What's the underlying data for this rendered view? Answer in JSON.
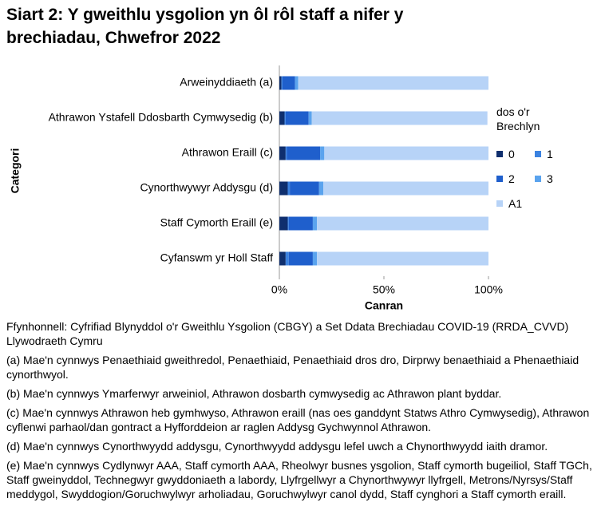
{
  "chart_data": {
    "type": "stacked-bar-horizontal",
    "title": "Siart 2: Y gweithlu ysgolion yn ôl rôl staff a nifer y brechiadau, Chwefror 2022",
    "categories": [
      "Arweinyddiaeth (a)",
      "Athrawon Ystafell Ddosbarth Cymwysedig (b)",
      "Athrawon Eraill (c)",
      "Cynorthwywyr Addysgu (d)",
      "Staff Cymorth Eraill (e)",
      "Cyfanswm yr Holl Staff"
    ],
    "series": [
      {
        "name": "0",
        "color": "#0f2f6e",
        "values": [
          1,
          2.5,
          3,
          4,
          4,
          3
        ]
      },
      {
        "name": "1",
        "color": "#3b82e0",
        "values": [
          0.5,
          0.5,
          0.5,
          1,
          0.5,
          1.5
        ]
      },
      {
        "name": "2",
        "color": "#1f5fcc",
        "values": [
          6,
          11,
          16,
          14,
          11.5,
          11.5
        ]
      },
      {
        "name": "3",
        "color": "#5aa3ee",
        "values": [
          1.5,
          1.5,
          2,
          2,
          2,
          2
        ]
      },
      {
        "name": "A1",
        "color": "#b7d3f7",
        "values": [
          91,
          84,
          78.5,
          79,
          82,
          82
        ]
      }
    ],
    "xlim": [
      0,
      100
    ],
    "xticks": [
      {
        "value": 0,
        "label": "0%"
      },
      {
        "value": 50,
        "label": "50%"
      },
      {
        "value": 100,
        "label": "100%"
      }
    ],
    "x_label": "Canran",
    "y_label": "Categori",
    "legend_title": "dos o'r Brechlyn"
  },
  "footnotes": {
    "source": "Ffynhonnell: Cyfrifiad Blynyddol o'r Gweithlu Ysgolion (CBGY) a Set Ddata Brechiadau COVID-19 (RRDA_CVVD) Llywodraeth Cymru",
    "items": [
      "(a)  Mae'n cynnwys Penaethiaid gweithredol, Penaethiaid, Penaethiaid dros dro, Dirprwy benaethiaid a Phenaethiaid cynorthwyol.",
      "(b) Mae'n cynnwys Ymarferwyr arweiniol, Athrawon dosbarth cymwysedig ac Athrawon plant byddar.",
      "(c) Mae'n cynnwys Athrawon heb gymhwyso, Athrawon eraill (nas oes ganddynt Statws Athro Cymwysedig), Athrawon cyflenwi parhaol/dan gontract a Hyfforddeion ar raglen Addysg Gychwynnol Athrawon.",
      "(d) Mae'n cynnwys Cynorthwyydd addysgu, Cynorthwyydd addysgu lefel uwch a Chynorthwyydd iaith dramor.",
      "(e) Mae'n cynnwys Cydlynwyr AAA, Staff cymorth AAA, Rheolwyr busnes ysgolion, Staff cymorth bugeiliol, Staff TGCh, Staff gweinyddol, Technegwyr gwyddoniaeth a labordy, Llyfrgellwyr a Chynorthwywyr llyfrgell, Metrons/Nyrsys/Staff meddygol, Swyddogion/Goruchwylwyr arholiadau, Goruchwylwyr canol dydd, Staff cynghori a Staff cymorth eraill."
    ]
  }
}
